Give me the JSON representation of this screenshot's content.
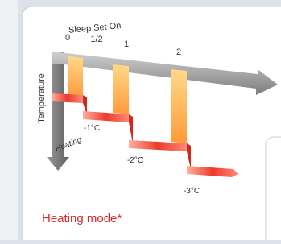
{
  "diagram": {
    "title": "Sleep Set On",
    "ticks": [
      "0",
      "1/2",
      "1",
      "2"
    ],
    "axis_label": "Temperature",
    "arrow_label": "Heating",
    "steps": [
      "-1°C",
      "-2°C",
      "-3°C"
    ]
  },
  "caption": "Heating mode*"
}
